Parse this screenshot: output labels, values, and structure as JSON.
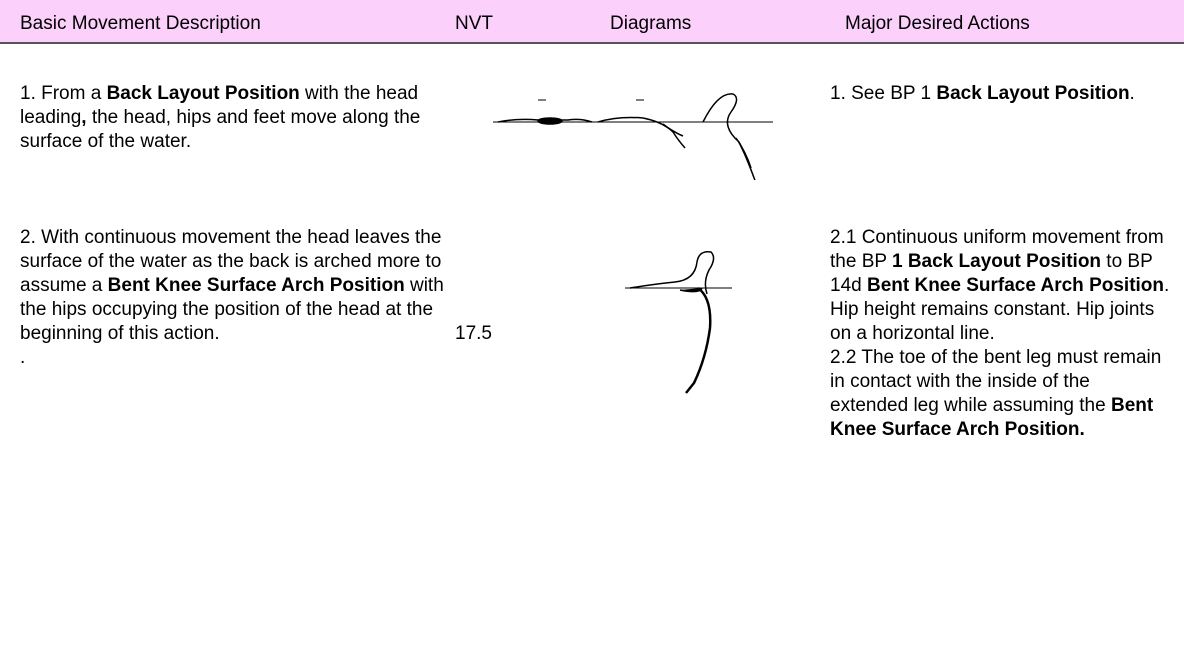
{
  "header": {
    "columns": [
      "Basic Movement Description",
      "NVT",
      "Diagrams",
      "Major Desired Actions"
    ]
  },
  "rows": [
    {
      "description": [
        [
          {
            "text": "1.  From a "
          },
          {
            "text": "Back Layout Position",
            "bold": true
          },
          {
            "text": " with the head leading"
          },
          {
            "text": ",",
            "bold": true
          },
          {
            "text": " the head, hips and feet move along the surface of the water."
          }
        ]
      ],
      "actions": [
        [
          {
            "text": "1.  See BP 1 "
          },
          {
            "text": "Back Layout Position",
            "bold": true
          },
          {
            "text": "."
          }
        ]
      ]
    },
    {
      "description": [
        [
          {
            "text": "2. With continuous movement the head leaves the surface of the water as the back is arched more to assume a "
          },
          {
            "text": "Bent Knee Surface Arch Position",
            "bold": true
          },
          {
            "text": " with the hips occupying the position of the head at the beginning of this action."
          }
        ],
        [
          {
            "text": "."
          }
        ]
      ],
      "nvt": "17.5",
      "actions": [
        [
          {
            "text": "2.1 Continuous uniform movement from the BP "
          },
          {
            "text": "1 Back Layout Position",
            "bold": true
          },
          {
            "text": " to BP 14d "
          },
          {
            "text": "Bent Knee Surface Arch Position",
            "bold": true
          },
          {
            "text": ". Hip height remains constant. Hip joints on a horizontal line."
          }
        ],
        [
          {
            "text": "2.2 The toe of the bent leg must remain in contact with the inside of the extended leg while assuming the "
          },
          {
            "text": "Bent Knee Surface Arch Position.",
            "bold": true
          }
        ]
      ]
    }
  ]
}
